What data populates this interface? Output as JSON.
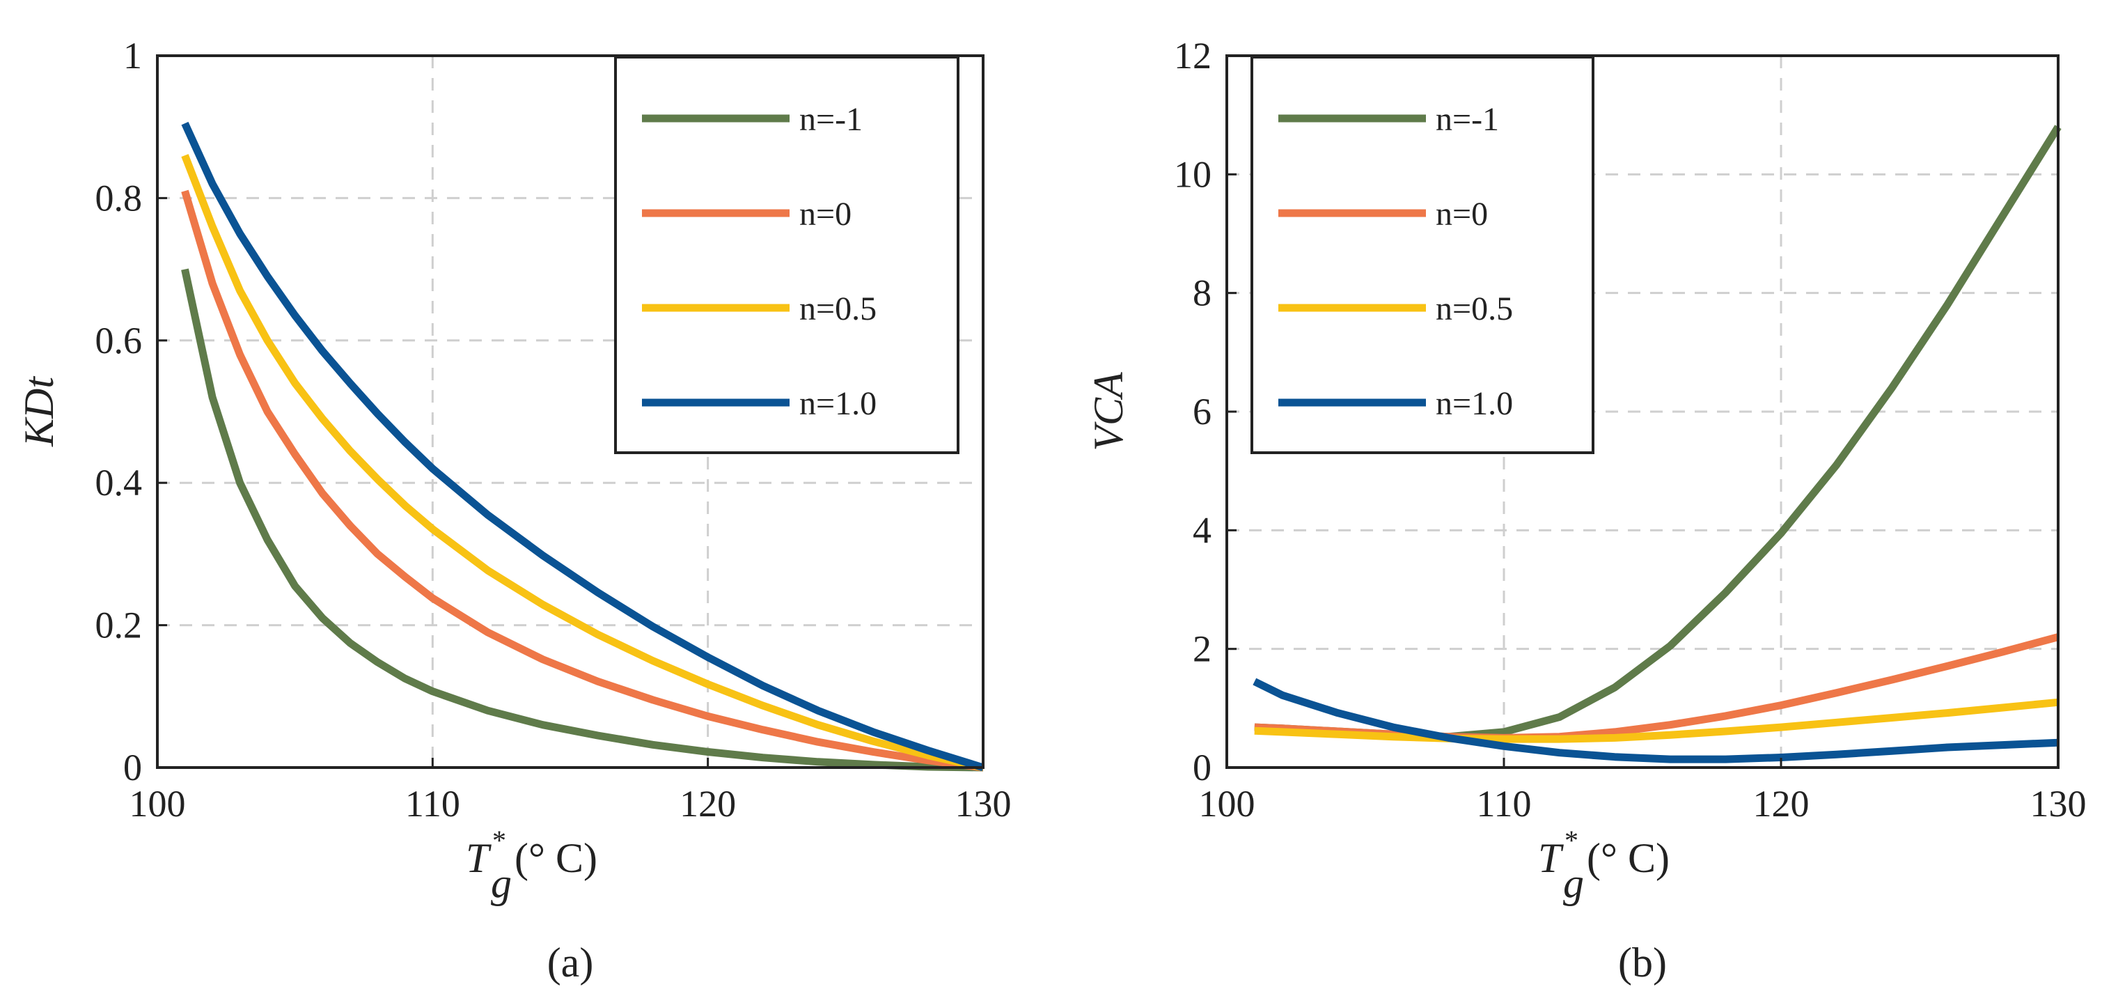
{
  "colors": {
    "n_m1": "#5f7b4a",
    "n_0": "#ee7748",
    "n_05": "#f8c214",
    "n_1": "#0a5394"
  },
  "chart_data": [
    {
      "panel": "(a)",
      "type": "line",
      "ylabel": "KDt",
      "xlabel_base": "T",
      "xlabel_sup": "*",
      "xlabel_sub": "g",
      "xlabel_unit": " (° C)",
      "xlim": [
        100,
        130
      ],
      "ylim": [
        0,
        1
      ],
      "xticks": [
        100,
        110,
        120,
        130
      ],
      "yticks": [
        0,
        0.2,
        0.4,
        0.6,
        0.8,
        1
      ],
      "ytick_labels": [
        "0",
        "0.2",
        "0.4",
        "0.6",
        "0.8",
        "1"
      ],
      "grid": true,
      "legend_position": "top-right",
      "x": [
        101,
        102,
        103,
        104,
        105,
        106,
        107,
        108,
        109,
        110,
        112,
        114,
        116,
        118,
        120,
        122,
        124,
        126,
        128,
        130
      ],
      "series": [
        {
          "name": "n=-1",
          "color_key": "n_m1",
          "values": [
            0.7,
            0.52,
            0.4,
            0.32,
            0.255,
            0.21,
            0.175,
            0.148,
            0.125,
            0.107,
            0.08,
            0.06,
            0.045,
            0.032,
            0.022,
            0.014,
            0.008,
            0.004,
            0.001,
            0
          ]
        },
        {
          "name": "n=0",
          "color_key": "n_0",
          "values": [
            0.81,
            0.68,
            0.58,
            0.5,
            0.44,
            0.385,
            0.34,
            0.3,
            0.268,
            0.238,
            0.19,
            0.152,
            0.121,
            0.095,
            0.072,
            0.053,
            0.036,
            0.022,
            0.01,
            0
          ]
        },
        {
          "name": "n=0.5",
          "color_key": "n_05",
          "values": [
            0.86,
            0.76,
            0.67,
            0.6,
            0.54,
            0.49,
            0.445,
            0.405,
            0.368,
            0.335,
            0.277,
            0.229,
            0.187,
            0.15,
            0.117,
            0.087,
            0.06,
            0.037,
            0.017,
            0
          ]
        },
        {
          "name": "n=1.0",
          "color_key": "n_1",
          "values": [
            0.905,
            0.82,
            0.75,
            0.69,
            0.635,
            0.585,
            0.54,
            0.497,
            0.457,
            0.42,
            0.355,
            0.298,
            0.246,
            0.198,
            0.155,
            0.115,
            0.08,
            0.05,
            0.024,
            0
          ]
        }
      ]
    },
    {
      "panel": "(b)",
      "type": "line",
      "ylabel": "VCA",
      "xlabel_base": "T",
      "xlabel_sup": "*",
      "xlabel_sub": "g",
      "xlabel_unit": " (° C)",
      "xlim": [
        100,
        130
      ],
      "ylim": [
        0,
        12
      ],
      "xticks": [
        100,
        110,
        120,
        130
      ],
      "yticks": [
        0,
        2,
        4,
        6,
        8,
        10,
        12
      ],
      "ytick_labels": [
        "0",
        "2",
        "4",
        "6",
        "8",
        "10",
        "12"
      ],
      "grid": true,
      "legend_position": "top-left",
      "x": [
        101,
        102,
        104,
        106,
        108,
        110,
        112,
        114,
        116,
        118,
        120,
        122,
        124,
        126,
        128,
        130
      ],
      "series": [
        {
          "name": "n=-1",
          "color_key": "n_m1",
          "values": [
            0.68,
            0.66,
            0.61,
            0.56,
            0.52,
            0.6,
            0.85,
            1.35,
            2.05,
            2.95,
            3.95,
            5.1,
            6.4,
            7.8,
            9.3,
            10.8
          ]
        },
        {
          "name": "n=0",
          "color_key": "n_0",
          "values": [
            0.68,
            0.66,
            0.61,
            0.56,
            0.52,
            0.5,
            0.52,
            0.6,
            0.72,
            0.87,
            1.05,
            1.26,
            1.48,
            1.71,
            1.95,
            2.2
          ]
        },
        {
          "name": "n=0.5",
          "color_key": "n_05",
          "values": [
            0.62,
            0.6,
            0.56,
            0.52,
            0.49,
            0.48,
            0.48,
            0.5,
            0.55,
            0.61,
            0.68,
            0.76,
            0.84,
            0.92,
            1.01,
            1.1
          ]
        },
        {
          "name": "n=1.0",
          "color_key": "n_1",
          "values": [
            1.45,
            1.22,
            0.92,
            0.68,
            0.5,
            0.36,
            0.25,
            0.18,
            0.14,
            0.14,
            0.17,
            0.22,
            0.28,
            0.34,
            0.38,
            0.42
          ]
        }
      ]
    }
  ]
}
